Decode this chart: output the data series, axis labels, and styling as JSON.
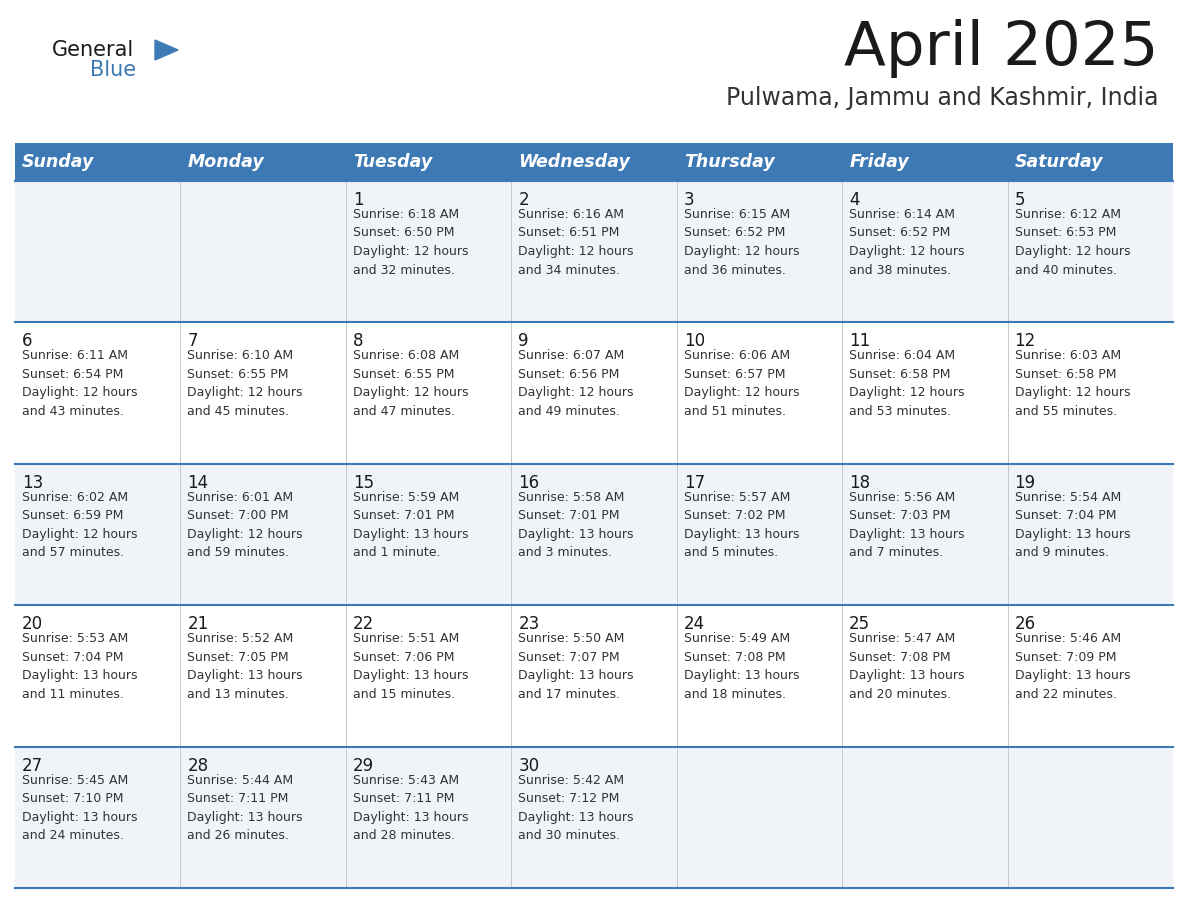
{
  "title": "April 2025",
  "subtitle": "Pulwama, Jammu and Kashmir, India",
  "days_of_week": [
    "Sunday",
    "Monday",
    "Tuesday",
    "Wednesday",
    "Thursday",
    "Friday",
    "Saturday"
  ],
  "header_bg": "#3d7ab5",
  "header_text": "#ffffff",
  "row_bg_odd": "#f0f4f8",
  "row_bg_even": "#ffffff",
  "cell_border": "#3d7ab5",
  "title_color": "#1a1a1a",
  "subtitle_color": "#333333",
  "text_color": "#333333",
  "day_num_color": "#1a1a1a",
  "logo_general_color": "#1a1a1a",
  "logo_blue_color": "#3d7ab5",
  "calendar": [
    [
      {
        "day": "",
        "info": ""
      },
      {
        "day": "",
        "info": ""
      },
      {
        "day": "1",
        "info": "Sunrise: 6:18 AM\nSunset: 6:50 PM\nDaylight: 12 hours\nand 32 minutes."
      },
      {
        "day": "2",
        "info": "Sunrise: 6:16 AM\nSunset: 6:51 PM\nDaylight: 12 hours\nand 34 minutes."
      },
      {
        "day": "3",
        "info": "Sunrise: 6:15 AM\nSunset: 6:52 PM\nDaylight: 12 hours\nand 36 minutes."
      },
      {
        "day": "4",
        "info": "Sunrise: 6:14 AM\nSunset: 6:52 PM\nDaylight: 12 hours\nand 38 minutes."
      },
      {
        "day": "5",
        "info": "Sunrise: 6:12 AM\nSunset: 6:53 PM\nDaylight: 12 hours\nand 40 minutes."
      }
    ],
    [
      {
        "day": "6",
        "info": "Sunrise: 6:11 AM\nSunset: 6:54 PM\nDaylight: 12 hours\nand 43 minutes."
      },
      {
        "day": "7",
        "info": "Sunrise: 6:10 AM\nSunset: 6:55 PM\nDaylight: 12 hours\nand 45 minutes."
      },
      {
        "day": "8",
        "info": "Sunrise: 6:08 AM\nSunset: 6:55 PM\nDaylight: 12 hours\nand 47 minutes."
      },
      {
        "day": "9",
        "info": "Sunrise: 6:07 AM\nSunset: 6:56 PM\nDaylight: 12 hours\nand 49 minutes."
      },
      {
        "day": "10",
        "info": "Sunrise: 6:06 AM\nSunset: 6:57 PM\nDaylight: 12 hours\nand 51 minutes."
      },
      {
        "day": "11",
        "info": "Sunrise: 6:04 AM\nSunset: 6:58 PM\nDaylight: 12 hours\nand 53 minutes."
      },
      {
        "day": "12",
        "info": "Sunrise: 6:03 AM\nSunset: 6:58 PM\nDaylight: 12 hours\nand 55 minutes."
      }
    ],
    [
      {
        "day": "13",
        "info": "Sunrise: 6:02 AM\nSunset: 6:59 PM\nDaylight: 12 hours\nand 57 minutes."
      },
      {
        "day": "14",
        "info": "Sunrise: 6:01 AM\nSunset: 7:00 PM\nDaylight: 12 hours\nand 59 minutes."
      },
      {
        "day": "15",
        "info": "Sunrise: 5:59 AM\nSunset: 7:01 PM\nDaylight: 13 hours\nand 1 minute."
      },
      {
        "day": "16",
        "info": "Sunrise: 5:58 AM\nSunset: 7:01 PM\nDaylight: 13 hours\nand 3 minutes."
      },
      {
        "day": "17",
        "info": "Sunrise: 5:57 AM\nSunset: 7:02 PM\nDaylight: 13 hours\nand 5 minutes."
      },
      {
        "day": "18",
        "info": "Sunrise: 5:56 AM\nSunset: 7:03 PM\nDaylight: 13 hours\nand 7 minutes."
      },
      {
        "day": "19",
        "info": "Sunrise: 5:54 AM\nSunset: 7:04 PM\nDaylight: 13 hours\nand 9 minutes."
      }
    ],
    [
      {
        "day": "20",
        "info": "Sunrise: 5:53 AM\nSunset: 7:04 PM\nDaylight: 13 hours\nand 11 minutes."
      },
      {
        "day": "21",
        "info": "Sunrise: 5:52 AM\nSunset: 7:05 PM\nDaylight: 13 hours\nand 13 minutes."
      },
      {
        "day": "22",
        "info": "Sunrise: 5:51 AM\nSunset: 7:06 PM\nDaylight: 13 hours\nand 15 minutes."
      },
      {
        "day": "23",
        "info": "Sunrise: 5:50 AM\nSunset: 7:07 PM\nDaylight: 13 hours\nand 17 minutes."
      },
      {
        "day": "24",
        "info": "Sunrise: 5:49 AM\nSunset: 7:08 PM\nDaylight: 13 hours\nand 18 minutes."
      },
      {
        "day": "25",
        "info": "Sunrise: 5:47 AM\nSunset: 7:08 PM\nDaylight: 13 hours\nand 20 minutes."
      },
      {
        "day": "26",
        "info": "Sunrise: 5:46 AM\nSunset: 7:09 PM\nDaylight: 13 hours\nand 22 minutes."
      }
    ],
    [
      {
        "day": "27",
        "info": "Sunrise: 5:45 AM\nSunset: 7:10 PM\nDaylight: 13 hours\nand 24 minutes."
      },
      {
        "day": "28",
        "info": "Sunrise: 5:44 AM\nSunset: 7:11 PM\nDaylight: 13 hours\nand 26 minutes."
      },
      {
        "day": "29",
        "info": "Sunrise: 5:43 AM\nSunset: 7:11 PM\nDaylight: 13 hours\nand 28 minutes."
      },
      {
        "day": "30",
        "info": "Sunrise: 5:42 AM\nSunset: 7:12 PM\nDaylight: 13 hours\nand 30 minutes."
      },
      {
        "day": "",
        "info": ""
      },
      {
        "day": "",
        "info": ""
      },
      {
        "day": "",
        "info": ""
      }
    ]
  ]
}
